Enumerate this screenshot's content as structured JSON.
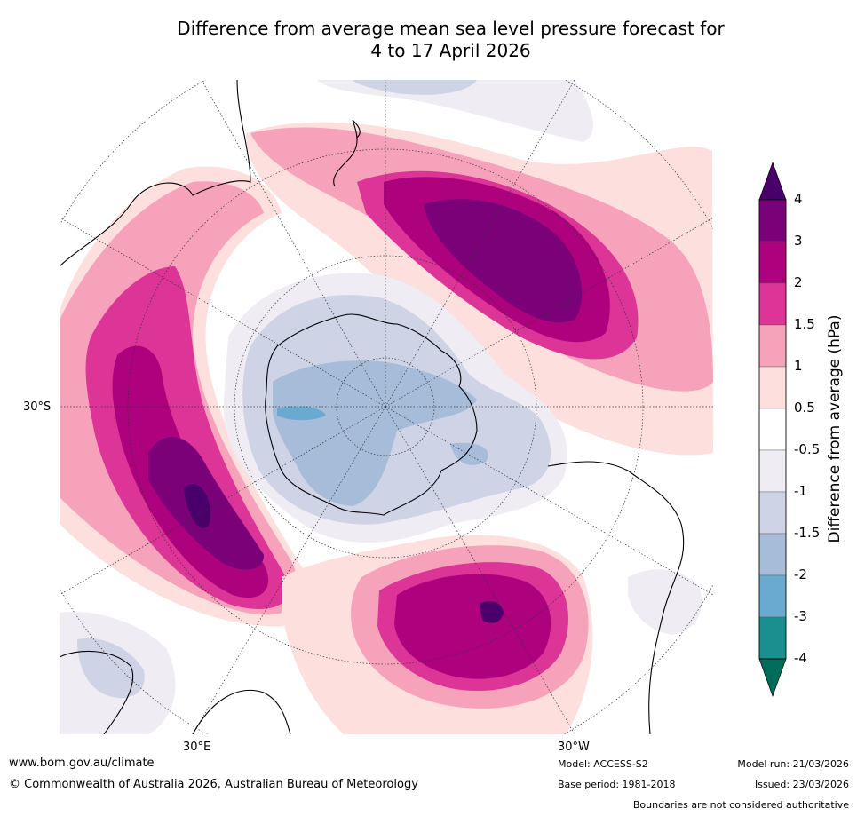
{
  "title": {
    "line1": "Difference from average mean sea level pressure forecast for",
    "line2": "4 to 17 April 2026"
  },
  "map": {
    "lat_label_left": "30°S",
    "lon_label_left": "30°E",
    "lon_label_right": "30°W",
    "colors": {
      "c_neg4": "#1a8f8f",
      "c_neg3": "#6aaad0",
      "c_neg2": "#a6bcd8",
      "c_neg15": "#cfd3e6",
      "c_neg1": "#efecf3",
      "c_05": "#fde0dd",
      "c_1": "#f6a2bb",
      "c_15": "#dd3497",
      "c_2": "#ae017e",
      "c_3": "#7a0177",
      "c_4": "#49006a"
    }
  },
  "colorbar": {
    "title": "Difference from average (hPa)",
    "ticks": [
      "4",
      "3",
      "2",
      "1.5",
      "1",
      "0.5",
      "-0.5",
      "-1",
      "-1.5",
      "-2",
      "-3",
      "-4"
    ],
    "colors": [
      "#7a0177",
      "#ae017e",
      "#dd3497",
      "#f6a2bb",
      "#fde0dd",
      "#ffffff",
      "#efecf3",
      "#cfd3e6",
      "#a6bcd8",
      "#6aaad0",
      "#1a8f8f"
    ],
    "over_color": "#49006a",
    "under_color": "#006d5b"
  },
  "footer": {
    "website": "www.bom.gov.au/climate",
    "copyright": "© Commonwealth of Australia 2026, Australian Bureau of Meteorology",
    "model": "Model: ACCESS-S2",
    "base_period": "Base period: 1981-2018",
    "model_run": "Model run: 21/03/2026",
    "issued": "Issued: 23/03/2026",
    "disclaimer": "Boundaries are not considered authoritative"
  }
}
